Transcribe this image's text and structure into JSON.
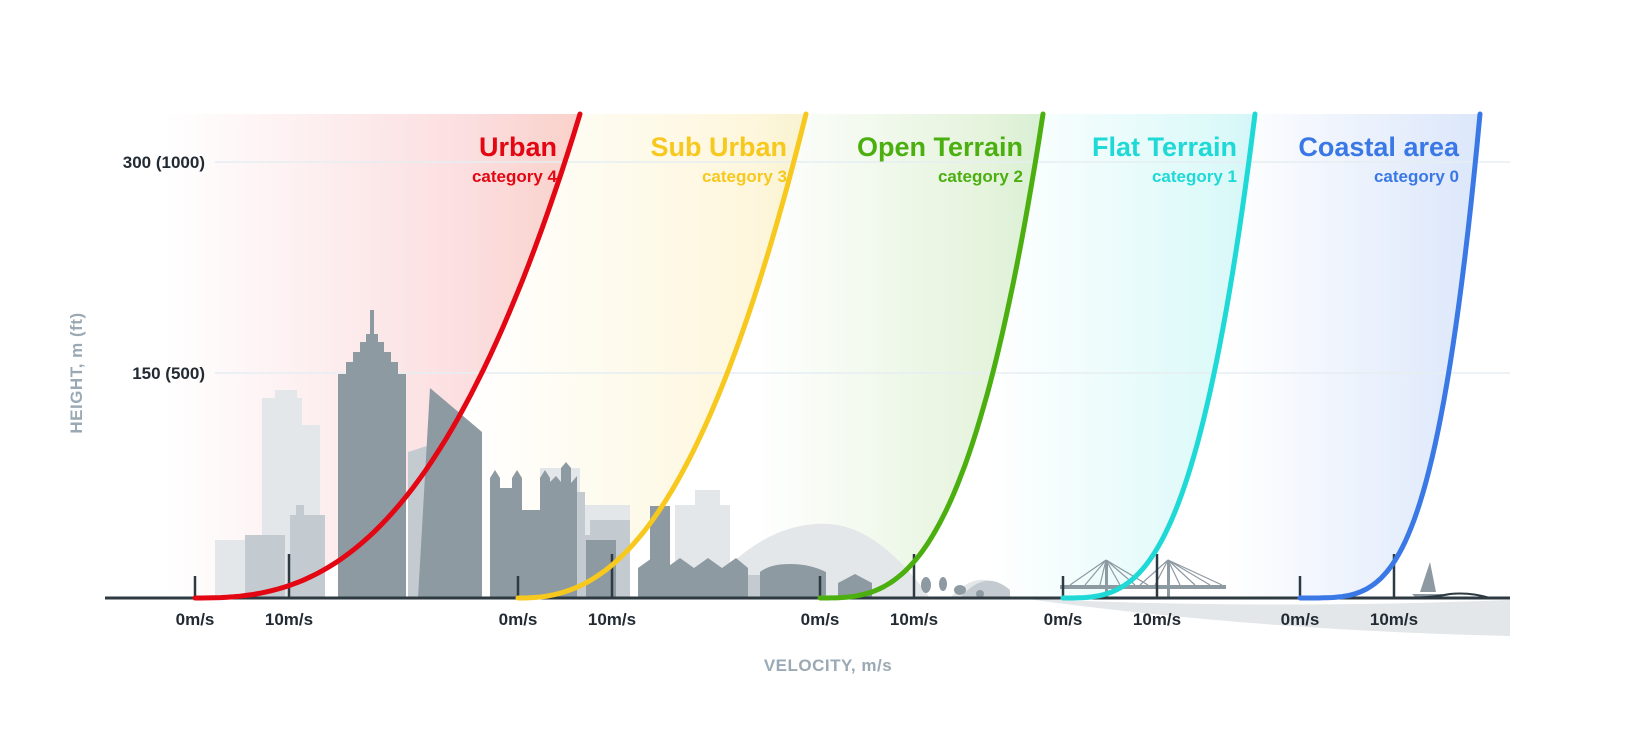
{
  "y_axis": {
    "title": "HEIGHT, m (ft)",
    "ticks": [
      {
        "label": "300 (1000)",
        "value": 300
      },
      {
        "label": "150 (500)",
        "value": 150
      }
    ]
  },
  "x_axis": {
    "title": "VELOCITY, m/s",
    "tick_labels": [
      "0m/s",
      "10m/s"
    ]
  },
  "categories": [
    {
      "name": "Urban",
      "sub": "category 4",
      "color": "#e30613"
    },
    {
      "name": "Sub Urban",
      "sub": "category 3",
      "color": "#f7c81e"
    },
    {
      "name": "Open Terrain",
      "sub": "category  2",
      "color": "#4caf10"
    },
    {
      "name": "Flat Terrain",
      "sub": "category  1",
      "color": "#1ed9d6"
    },
    {
      "name": "Coastal area",
      "sub": "category 0",
      "color": "#3a78e6"
    }
  ],
  "colors": {
    "axis": "#2e3a42",
    "skyline": "#8e9aa2",
    "skyline_light": "#c9d0d4",
    "grid": "#e6eef2"
  }
}
